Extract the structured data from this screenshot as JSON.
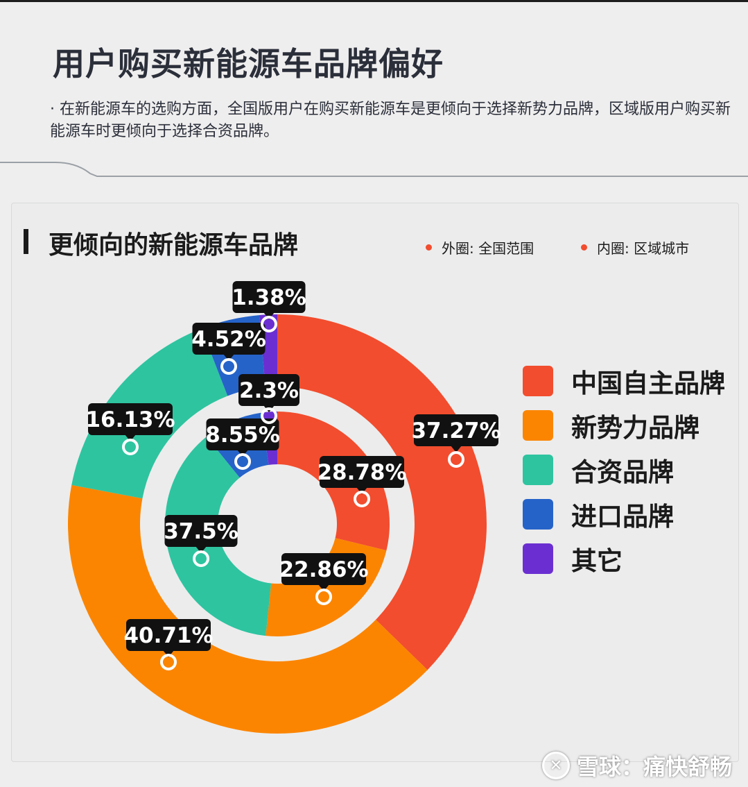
{
  "page": {
    "title": "用户购买新能源车品牌偏好",
    "description": "· 在新能源车的选购方面，全国版用户在购买新能源车是更倾向于选择新势力品牌，区域版用户购买新能源车时更倾向于选择合资品牌。"
  },
  "chart_data": {
    "type": "pie",
    "title": "更倾向的新能源车品牌",
    "ring_notes": [
      "外圈: 全国范围",
      "内圈: 区域城市"
    ],
    "categories": [
      "中国自主品牌",
      "新势力品牌",
      "合资品牌",
      "进口品牌",
      "其它"
    ],
    "colors": [
      "#f24d2e",
      "#fb8500",
      "#2ec4a0",
      "#2563c9",
      "#6b2fd1"
    ],
    "series": [
      {
        "name": "外圈: 全国范围",
        "values": [
          37.27,
          40.71,
          16.13,
          4.52,
          1.38
        ],
        "labels": [
          "37.27%",
          "40.71%",
          "16.13%",
          "4.52%",
          "1.38%"
        ]
      },
      {
        "name": "内圈: 区域城市",
        "values": [
          28.78,
          22.86,
          37.5,
          8.55,
          2.3
        ],
        "labels": [
          "28.78%",
          "22.86%",
          "37.5%",
          "8.55%",
          "2.3%"
        ]
      }
    ],
    "legend_position": "right"
  },
  "watermark": {
    "icon": "xueqiu-logo-icon",
    "text": "雪球：痛快舒畅"
  }
}
